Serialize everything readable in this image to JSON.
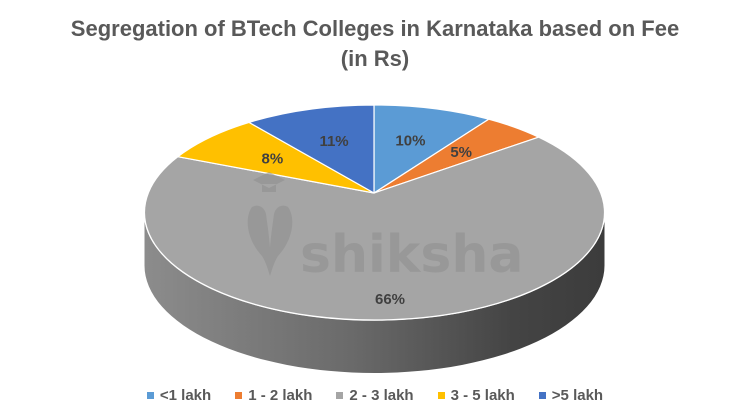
{
  "chart_data": {
    "type": "pie",
    "style": "3d-pie",
    "title": "Segregation of BTech Colleges in Karnataka based on Fee",
    "subtitle": "(in Rs)",
    "categories": [
      "<1 lakh",
      "1 - 2 lakh",
      "2 - 3 lakh",
      "3 - 5 lakh",
      ">5 lakh"
    ],
    "values": [
      10,
      5,
      66,
      8,
      11
    ],
    "labels": [
      "10%",
      "5%",
      "66%",
      "8%",
      "11%"
    ],
    "colors": [
      "#5b9bd5",
      "#ed7d31",
      "#a5a5a5",
      "#ffc000",
      "#4472c4"
    ],
    "legend_position": "bottom",
    "watermark": "shiksha"
  },
  "legend": {
    "items": [
      {
        "label": "<1 lakh",
        "color": "#5b9bd5"
      },
      {
        "label": "1 - 2 lakh",
        "color": "#ed7d31"
      },
      {
        "label": "2 - 3 lakh",
        "color": "#a5a5a5"
      },
      {
        "label": "3 - 5 lakh",
        "color": "#ffc000"
      },
      {
        "label": ">5 lakh",
        "color": "#4472c4"
      }
    ]
  }
}
